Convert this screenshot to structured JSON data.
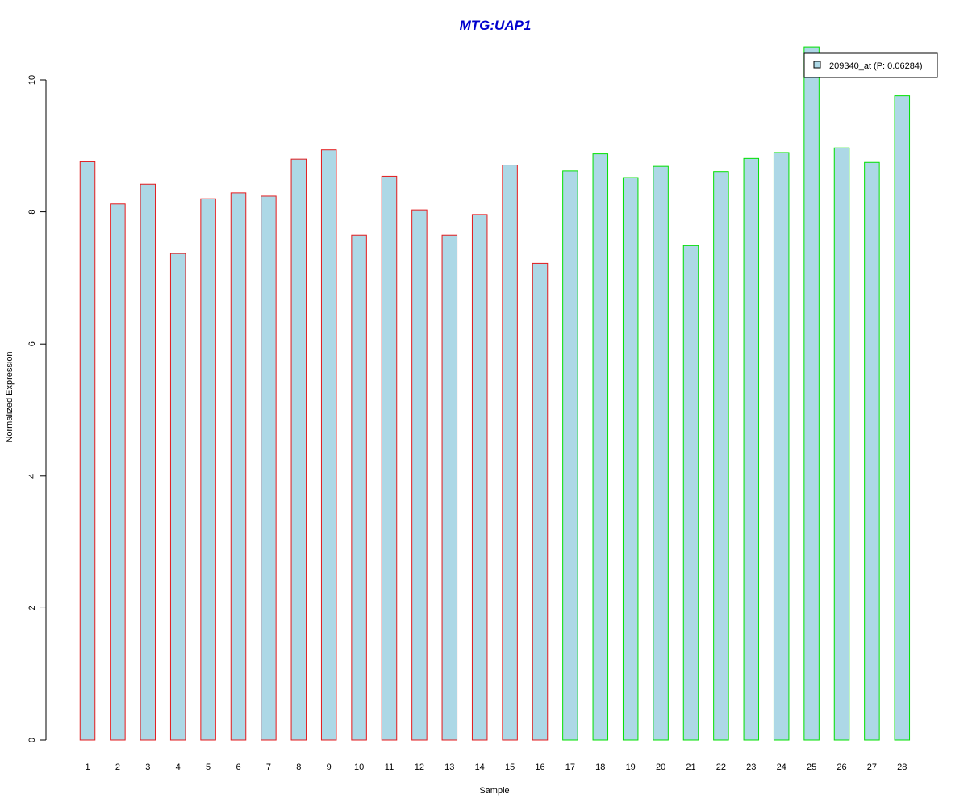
{
  "chart_data": {
    "type": "bar",
    "title": "MTG:UAP1",
    "xlabel": "Sample",
    "ylabel": "Normalized Expression",
    "ylim": [
      0,
      10
    ],
    "y_ticks": [
      0,
      2,
      4,
      6,
      8,
      10
    ],
    "categories": [
      "1",
      "2",
      "3",
      "4",
      "5",
      "6",
      "7",
      "8",
      "9",
      "10",
      "11",
      "12",
      "13",
      "14",
      "15",
      "16",
      "17",
      "18",
      "19",
      "20",
      "21",
      "22",
      "23",
      "24",
      "25",
      "26",
      "27",
      "28"
    ],
    "series": [
      {
        "name": "209340_at (P: 0.06284)",
        "values": [
          8.76,
          8.12,
          8.42,
          7.37,
          8.2,
          8.29,
          8.24,
          8.8,
          8.94,
          7.65,
          8.54,
          8.03,
          7.65,
          7.96,
          8.71,
          7.22,
          8.62,
          8.88,
          8.52,
          8.69,
          7.49,
          8.61,
          8.81,
          8.9,
          10.5,
          8.97,
          8.75,
          9.76
        ]
      }
    ],
    "group_border_colors": [
      "#e31a1c",
      "#e31a1c",
      "#e31a1c",
      "#e31a1c",
      "#e31a1c",
      "#e31a1c",
      "#e31a1c",
      "#e31a1c",
      "#e31a1c",
      "#e31a1c",
      "#e31a1c",
      "#e31a1c",
      "#e31a1c",
      "#e31a1c",
      "#e31a1c",
      "#e31a1c",
      "#00e000",
      "#00e000",
      "#00e000",
      "#00e000",
      "#00e000",
      "#00e000",
      "#00e000",
      "#00e000",
      "#00e000",
      "#00e000",
      "#00e000",
      "#00e000"
    ],
    "bar_fill": "#add8e6",
    "title_color": "#0000cd",
    "legend": {
      "label": "209340_at (P: 0.06284)",
      "position": "top-right"
    },
    "grid": false
  }
}
